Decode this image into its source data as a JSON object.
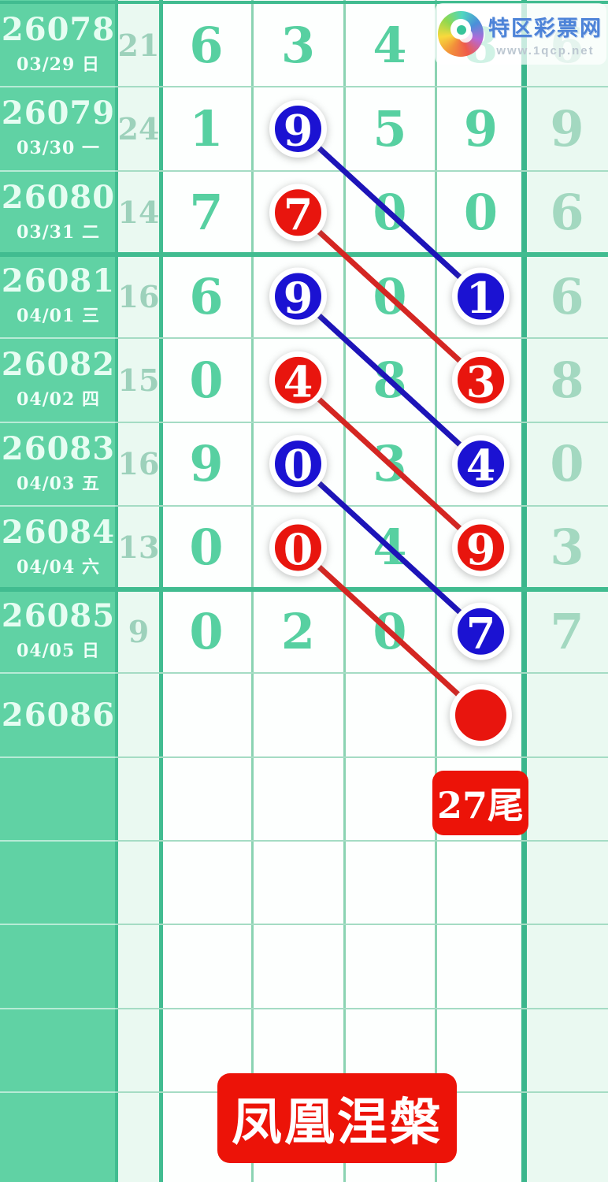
{
  "site": {
    "name": "特区彩票网",
    "watermark": "www.1qcp.net",
    "brand_color": "#4d83d8"
  },
  "table": {
    "rows": [
      {
        "issue": "26078",
        "date": "03/29 日",
        "sum": "21",
        "digits": [
          "6",
          "3",
          "4",
          "8",
          "6"
        ]
      },
      {
        "issue": "26079",
        "date": "03/30 一",
        "sum": "24",
        "digits": [
          "1",
          "9",
          "5",
          "9",
          "9"
        ]
      },
      {
        "issue": "26080",
        "date": "03/31 二",
        "sum": "14",
        "digits": [
          "7",
          "7",
          "0",
          "0",
          "6"
        ]
      },
      {
        "issue": "26081",
        "date": "04/01 三",
        "sum": "16",
        "digits": [
          "6",
          "9",
          "0",
          "1",
          "6"
        ]
      },
      {
        "issue": "26082",
        "date": "04/02 四",
        "sum": "15",
        "digits": [
          "0",
          "4",
          "8",
          "3",
          "8"
        ]
      },
      {
        "issue": "26083",
        "date": "04/03 五",
        "sum": "16",
        "digits": [
          "9",
          "0",
          "3",
          "4",
          "0"
        ]
      },
      {
        "issue": "26084",
        "date": "04/04 六",
        "sum": "13",
        "digits": [
          "0",
          "0",
          "4",
          "9",
          "3"
        ]
      },
      {
        "issue": "26085",
        "date": "04/05 日",
        "sum": "9",
        "digits": [
          "0",
          "2",
          "0",
          "7",
          "7"
        ]
      },
      {
        "issue": "26086",
        "date": "",
        "sum": "",
        "digits": [
          "",
          "",
          "",
          "",
          ""
        ]
      }
    ]
  },
  "marks": {
    "circles": [
      {
        "row": 1,
        "col": 1,
        "value": "9",
        "color": "blue"
      },
      {
        "row": 2,
        "col": 1,
        "value": "7",
        "color": "red"
      },
      {
        "row": 3,
        "col": 1,
        "value": "9",
        "color": "blue"
      },
      {
        "row": 3,
        "col": 3,
        "value": "1",
        "color": "blue"
      },
      {
        "row": 4,
        "col": 1,
        "value": "4",
        "color": "red"
      },
      {
        "row": 4,
        "col": 3,
        "value": "3",
        "color": "red"
      },
      {
        "row": 5,
        "col": 1,
        "value": "0",
        "color": "blue"
      },
      {
        "row": 5,
        "col": 3,
        "value": "4",
        "color": "blue"
      },
      {
        "row": 6,
        "col": 1,
        "value": "0",
        "color": "red"
      },
      {
        "row": 6,
        "col": 3,
        "value": "9",
        "color": "red"
      },
      {
        "row": 7,
        "col": 3,
        "value": "7",
        "color": "blue"
      },
      {
        "row": 8,
        "col": 3,
        "value": "",
        "color": "red"
      }
    ],
    "lines": [
      {
        "from": [
          1,
          1
        ],
        "to": [
          3,
          3
        ],
        "color": "blue"
      },
      {
        "from": [
          2,
          1
        ],
        "to": [
          4,
          3
        ],
        "color": "red"
      },
      {
        "from": [
          3,
          1
        ],
        "to": [
          5,
          3
        ],
        "color": "blue"
      },
      {
        "from": [
          4,
          1
        ],
        "to": [
          6,
          3
        ],
        "color": "red"
      },
      {
        "from": [
          5,
          1
        ],
        "to": [
          7,
          3
        ],
        "color": "blue"
      },
      {
        "from": [
          6,
          1
        ],
        "to": [
          8,
          3
        ],
        "color": "red"
      }
    ]
  },
  "annotation": {
    "tail_label": "27尾"
  },
  "banner": {
    "text": "凤凰涅槃"
  },
  "colors": {
    "teal_column": "#60d2a4",
    "mint_cell": "#eaf9f1",
    "digit": "#57d0a1",
    "digit_muted": "#a3d8c0",
    "sum_text": "#9dd1bb",
    "blue_circle": "#1b12d2",
    "blue_line": "#1d14b8",
    "red_circle": "#e8150e",
    "red_line": "#d42622",
    "grid_thin": "#a5dcc4",
    "grid_thick": "#41bc90",
    "badge_red": "#ec1308"
  }
}
